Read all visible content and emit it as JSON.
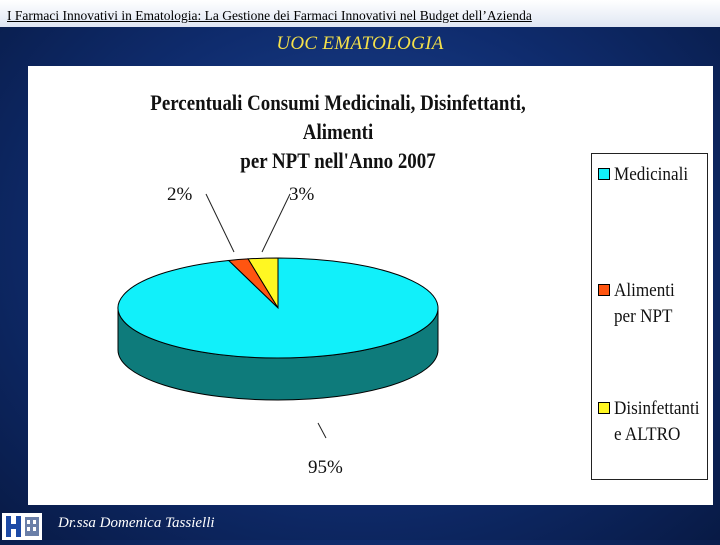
{
  "header": {
    "title": "I Farmaci Innovativi in Ematologia: La Gestione dei Farmaci Innovativi nel Budget dell’Azienda"
  },
  "slide": {
    "title": "UOC EMATOLOGIA"
  },
  "footer": {
    "author": "Dr.ssa Domenica Tassielli"
  },
  "colors": {
    "medicinali_top": "#11f0fa",
    "medicinali_side": "#0e7b7b",
    "alimenti": "#ff5511",
    "disinfettanti": "#fff722"
  },
  "chart_data": {
    "type": "pie",
    "title_lines": [
      "Percentuali Consumi Medicinali, Disinfettanti, Alimenti",
      "per NPT nell'Anno 2007"
    ],
    "slices": [
      {
        "name": "Medicinali",
        "value": 95,
        "label": "95%",
        "color": "#11f0fa"
      },
      {
        "name": "Alimenti per NPT",
        "value": 2,
        "label": "2%",
        "color": "#ff5511"
      },
      {
        "name": "Disinfettanti e ALTRO",
        "value": 3,
        "label": "3%",
        "color": "#fff722"
      }
    ],
    "legend": [
      "Medicinali",
      "Alimenti per NPT",
      "Disinfettanti e ALTRO"
    ],
    "legend_position": "right"
  }
}
